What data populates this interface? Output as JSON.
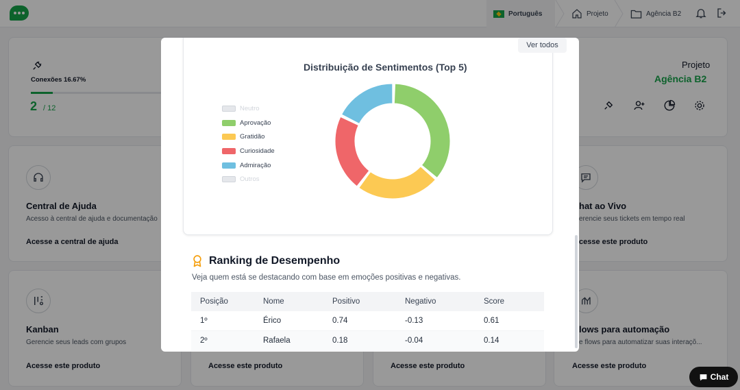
{
  "topbar": {
    "language": "Português",
    "project_label": "Projeto",
    "agency": "Agência B2"
  },
  "connections": {
    "label": "Conexões 16.67%",
    "count": "2",
    "total": "/ 12",
    "progress": 0.1667
  },
  "project": {
    "label": "Projeto",
    "name": "Agência B2"
  },
  "products": [
    {
      "title": "Central de Ajuda",
      "desc": "Acesso à central de ajuda e documentação",
      "link": "Acesse a central de ajuda",
      "icon": "headset-icon"
    },
    {
      "title": "hat ao Vivo",
      "desc": "erencie seus tickets em tempo real",
      "link": "cesse este produto",
      "icon": "chat-icon"
    },
    {
      "title": "Kanban",
      "desc": "Gerencie seus leads com grupos",
      "link": "Acesse este produto",
      "icon": "kanban-icon"
    },
    {
      "title": "lows para automação",
      "desc": "e flows para automatizar suas interaçõ...",
      "link": "Acesse este produto",
      "icon": "flow-icon"
    },
    {
      "link": "Acesse este produto"
    },
    {
      "link": "Acesse este produto"
    }
  ],
  "modal": {
    "ver_todos": "Ver todos",
    "chart_data": {
      "type": "pie",
      "title": "Distribuição de Sentimentos (Top 5)",
      "legend": [
        "Neutro",
        "Aprovação",
        "Gratidão",
        "Curiosidade",
        "Admiração",
        "Outros"
      ],
      "hidden": [
        "Neutro",
        "Outros"
      ],
      "categories": [
        "Aprovação",
        "Gratidão",
        "Curiosidade",
        "Admiração"
      ],
      "values": [
        36,
        24,
        22,
        18
      ],
      "colors": {
        "Aprovação": "#8fce6b",
        "Gratidão": "#fcc953",
        "Curiosidade": "#ef6669",
        "Admiração": "#6fbfe0"
      },
      "donut": true
    },
    "ranking": {
      "title": "Ranking de Desempenho",
      "subtitle": "Veja quem está se destacando com base em emoções positivas e negativas.",
      "columns": [
        "Posição",
        "Nome",
        "Positivo",
        "Negativo",
        "Score"
      ],
      "rows": [
        [
          "1º",
          "Érico",
          "0.74",
          "-0.13",
          "0.61"
        ],
        [
          "2º",
          "Rafaela",
          "0.18",
          "-0.04",
          "0.14"
        ]
      ]
    }
  },
  "chat_button": "Chat",
  "colors": {
    "brand": "#16a34a",
    "accent_yellow": "#f59e0b"
  }
}
